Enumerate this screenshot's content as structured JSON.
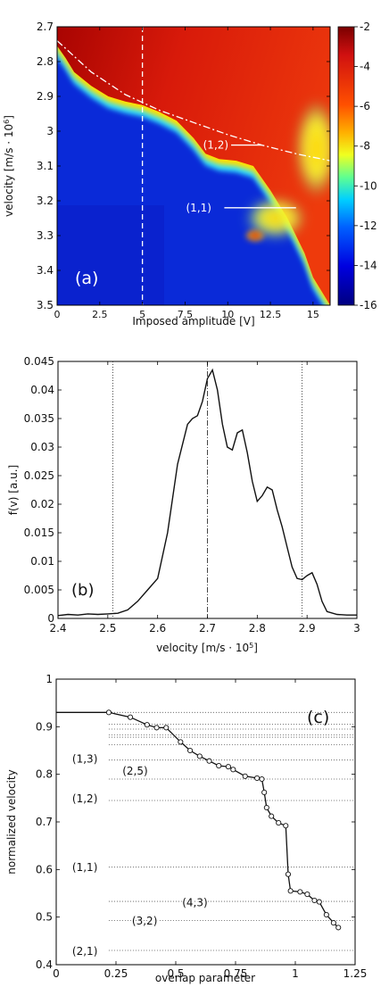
{
  "chart_data": [
    {
      "panel": "(a)",
      "type": "heatmap",
      "xlabel": "Imposed amplitude [V]",
      "ylabel": "velocity  [m/s · 10",
      "ylabel_sup": "6",
      "ylabel_end": "]",
      "xlim": [
        0,
        16
      ],
      "ylim": [
        3.5,
        2.7
      ],
      "y_reversed": true,
      "x_ticks": [
        0,
        2.5,
        5,
        7.5,
        10,
        12.5,
        15
      ],
      "x_tick_labels": [
        "0",
        "2.5",
        "5",
        "7.5",
        "10",
        "12.5",
        "15"
      ],
      "y_ticks": [
        2.7,
        2.8,
        2.9,
        3.0,
        3.1,
        3.2,
        3.3,
        3.4,
        3.5
      ],
      "y_tick_labels": [
        "2.7",
        "2.8",
        "2.9",
        "3",
        "3.1",
        "3.2",
        "3.3",
        "3.4",
        "3.5"
      ],
      "colorbar": {
        "min": -16,
        "max": -2,
        "ticks": [
          "-2",
          "-4",
          "-6",
          "-8",
          "-10",
          "-12",
          "-14",
          "-16"
        ]
      },
      "boundary": [
        [
          0,
          2.755
        ],
        [
          0.5,
          2.79
        ],
        [
          1,
          2.83
        ],
        [
          2,
          2.87
        ],
        [
          3,
          2.9
        ],
        [
          4,
          2.915
        ],
        [
          5,
          2.925
        ],
        [
          6,
          2.945
        ],
        [
          7,
          2.97
        ],
        [
          8,
          3.02
        ],
        [
          8.7,
          3.065
        ],
        [
          9.5,
          3.08
        ],
        [
          10.5,
          3.085
        ],
        [
          11.5,
          3.1
        ],
        [
          12.5,
          3.17
        ],
        [
          13.5,
          3.25
        ],
        [
          14.5,
          3.35
        ],
        [
          15,
          3.42
        ],
        [
          16,
          3.5
        ]
      ],
      "dashed_vertical_x": 5,
      "dashdot_curve": [
        [
          0,
          2.74
        ],
        [
          2,
          2.83
        ],
        [
          4,
          2.895
        ],
        [
          6,
          2.94
        ],
        [
          8,
          2.975
        ],
        [
          10,
          3.01
        ],
        [
          12,
          3.04
        ],
        [
          14,
          3.065
        ],
        [
          16,
          3.085
        ]
      ],
      "annotations": [
        {
          "text": "(1,2)",
          "x": 9.3,
          "y": 3.04,
          "line_x": [
            10.2,
            12.0
          ]
        },
        {
          "text": "(1,1)",
          "x": 8.3,
          "y": 3.22,
          "line_x": [
            9.8,
            14.0
          ]
        }
      ],
      "panel_label": "(a)"
    },
    {
      "panel": "(b)",
      "type": "line",
      "xlabel": "velocity  [m/s · 10",
      "xlabel_sup": "5",
      "xlabel_end": "]",
      "ylabel": "f(v)  [a.u.]",
      "xlim": [
        2.4,
        3.0
      ],
      "ylim": [
        0,
        0.045
      ],
      "x_ticks": [
        2.4,
        2.5,
        2.6,
        2.7,
        2.8,
        2.9,
        3.0
      ],
      "x_tick_labels": [
        "2.4",
        "2.5",
        "2.6",
        "2.7",
        "2.8",
        "2.9",
        "3"
      ],
      "y_ticks": [
        0,
        0.005,
        0.01,
        0.015,
        0.02,
        0.025,
        0.03,
        0.035,
        0.04,
        0.045
      ],
      "y_tick_labels": [
        "0",
        "0.005",
        "0.01",
        "0.015",
        "0.02",
        "0.025",
        "0.03",
        "0.035",
        "0.04",
        "0.045"
      ],
      "x": [
        2.4,
        2.42,
        2.44,
        2.46,
        2.48,
        2.5,
        2.52,
        2.54,
        2.56,
        2.58,
        2.6,
        2.62,
        2.64,
        2.66,
        2.67,
        2.68,
        2.69,
        2.7,
        2.71,
        2.72,
        2.73,
        2.74,
        2.75,
        2.76,
        2.77,
        2.78,
        2.79,
        2.8,
        2.81,
        2.82,
        2.83,
        2.84,
        2.85,
        2.86,
        2.87,
        2.88,
        2.89,
        2.9,
        2.91,
        2.92,
        2.93,
        2.94,
        2.96,
        2.98,
        3.0
      ],
      "y": [
        0.0005,
        0.0007,
        0.0006,
        0.0008,
        0.0007,
        0.0008,
        0.0009,
        0.0015,
        0.003,
        0.005,
        0.007,
        0.015,
        0.027,
        0.034,
        0.035,
        0.0355,
        0.038,
        0.042,
        0.0435,
        0.04,
        0.034,
        0.03,
        0.0295,
        0.0325,
        0.033,
        0.029,
        0.024,
        0.0205,
        0.0215,
        0.023,
        0.0225,
        0.019,
        0.016,
        0.0125,
        0.009,
        0.007,
        0.0068,
        0.0075,
        0.008,
        0.006,
        0.003,
        0.0012,
        0.0007,
        0.0006,
        0.0006
      ],
      "dotted_vertical_x": [
        2.51,
        2.89
      ],
      "dashdot_vertical_x": 2.7,
      "panel_label": "(b)"
    },
    {
      "panel": "(c)",
      "type": "line",
      "xlabel": "overlap parameter",
      "ylabel": "normalized velocity",
      "xlim": [
        0,
        1.25
      ],
      "ylim": [
        0.4,
        1.0
      ],
      "x_ticks": [
        0,
        0.25,
        0.5,
        0.75,
        1.0,
        1.25
      ],
      "x_tick_labels": [
        "0",
        "0.25",
        "0.5",
        "0.75",
        "1",
        "1.25"
      ],
      "y_ticks": [
        0.4,
        0.5,
        0.6,
        0.7,
        0.8,
        0.9,
        1.0
      ],
      "y_tick_labels": [
        "0.4",
        "0.5",
        "0.6",
        "0.7",
        "0.8",
        "0.9",
        "1"
      ],
      "x": [
        0.0,
        0.22,
        0.31,
        0.38,
        0.42,
        0.46,
        0.52,
        0.56,
        0.6,
        0.64,
        0.68,
        0.72,
        0.74,
        0.79,
        0.84,
        0.86,
        0.87,
        0.88,
        0.9,
        0.93,
        0.96,
        0.97,
        0.98,
        1.02,
        1.05,
        1.08,
        1.1,
        1.13,
        1.16,
        1.18
      ],
      "y": [
        0.93,
        0.93,
        0.92,
        0.904,
        0.898,
        0.898,
        0.868,
        0.85,
        0.838,
        0.828,
        0.818,
        0.816,
        0.81,
        0.796,
        0.792,
        0.79,
        0.762,
        0.73,
        0.712,
        0.698,
        0.692,
        0.59,
        0.555,
        0.553,
        0.548,
        0.535,
        0.532,
        0.505,
        0.488,
        0.478
      ],
      "dotted_horizontal_y": [
        0.93,
        0.905,
        0.895,
        0.883,
        0.878,
        0.862,
        0.83,
        0.79,
        0.745,
        0.605,
        0.533,
        0.493,
        0.43
      ],
      "mode_labels": [
        {
          "text": "(1,3)",
          "x": 0.12,
          "y": 0.832
        },
        {
          "text": "(2,5)",
          "x": 0.33,
          "y": 0.807
        },
        {
          "text": "(1,2)",
          "x": 0.12,
          "y": 0.749
        },
        {
          "text": "(1,1)",
          "x": 0.12,
          "y": 0.604
        },
        {
          "text": "(4,3)",
          "x": 0.58,
          "y": 0.53
        },
        {
          "text": "(3,2)",
          "x": 0.37,
          "y": 0.492
        },
        {
          "text": "(2,1)",
          "x": 0.12,
          "y": 0.428
        }
      ],
      "panel_label": "(c)"
    }
  ]
}
